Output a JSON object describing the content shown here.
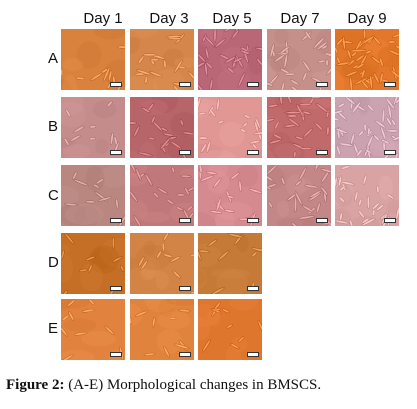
{
  "columns": [
    "Day 1",
    "Day 3",
    "Day 5",
    "Day 7",
    "Day 9"
  ],
  "rows": [
    {
      "label": "A",
      "tiles": [
        {
          "bg": "#d9823e",
          "cells": "sparse"
        },
        {
          "bg": "#d4864b",
          "cells": "moderate"
        },
        {
          "bg": "#b96676",
          "cells": "dense"
        },
        {
          "bg": "#c58f8a",
          "cells": "dense"
        },
        {
          "bg": "#e3782c",
          "cells": "confluent"
        }
      ]
    },
    {
      "label": "B",
      "tiles": [
        {
          "bg": "#c48d8b",
          "cells": "sparse"
        },
        {
          "bg": "#b76569",
          "cells": "moderate"
        },
        {
          "bg": "#e19894",
          "cells": "moderate"
        },
        {
          "bg": "#c16a6c",
          "cells": "dense"
        },
        {
          "bg": "#cba2b0",
          "cells": "confluent"
        }
      ]
    },
    {
      "label": "C",
      "tiles": [
        {
          "bg": "#b98680",
          "cells": "sparse"
        },
        {
          "bg": "#c1787a",
          "cells": "moderate"
        },
        {
          "bg": "#d58a90",
          "cells": "moderate"
        },
        {
          "bg": "#c38787",
          "cells": "dense"
        },
        {
          "bg": "#d9a3a3",
          "cells": "dense"
        }
      ]
    },
    {
      "label": "D",
      "tiles": [
        {
          "bg": "#c46e26",
          "cells": "sparse"
        },
        {
          "bg": "#d18445",
          "cells": "sparse"
        },
        {
          "bg": "#c57a38",
          "cells": "sparse"
        }
      ]
    },
    {
      "label": "E",
      "tiles": [
        {
          "bg": "#e1833f",
          "cells": "sparse"
        },
        {
          "bg": "#e0833d",
          "cells": "sparse"
        },
        {
          "bg": "#de762e",
          "cells": "sparse"
        }
      ]
    }
  ],
  "caption": {
    "prefix": "Figure 2:",
    "text": " (A-E) Morphological changes in BMSCS."
  }
}
